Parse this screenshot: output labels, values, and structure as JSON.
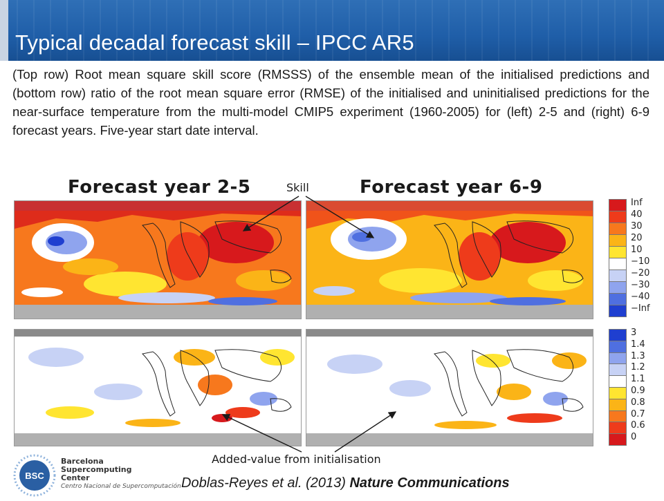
{
  "slide": {
    "title": "Typical decadal forecast skill – IPCC AR5",
    "description": "(Top row) Root mean square skill score (RMSSS) of the ensemble mean of the initialised predictions and (bottom row) ratio of the root mean square error (RMSE) of the initialised and uninitialised predictions for the near-surface temperature from the multi-model CMIP5 experiment (1960-2005) for (left) 2-5 and (right) 6-9 forecast years. Five-year start date interval."
  },
  "maps": {
    "left_title": "Forecast year 2-5",
    "right_title": "Forecast year 6-9"
  },
  "colorbar_top": {
    "labels": [
      "Inf",
      "40",
      "30",
      "20",
      "10",
      "−10",
      "−20",
      "−30",
      "−40",
      "−Inf"
    ],
    "colors": [
      "#d7191c",
      "#ee3b1b",
      "#f7781d",
      "#fbb417",
      "#ffe531",
      "#ffffff",
      "#c7d2f5",
      "#8fa4ee",
      "#4f6fe0",
      "#1f3fd0"
    ]
  },
  "colorbar_bottom": {
    "labels": [
      "3",
      "1.4",
      "1.3",
      "1.2",
      "1.1",
      "0.9",
      "0.8",
      "0.7",
      "0.6",
      "0"
    ],
    "colors": [
      "#1f3fd0",
      "#4f6fe0",
      "#8fa4ee",
      "#c7d2f5",
      "#ffffff",
      "#ffe531",
      "#fbb417",
      "#f7781d",
      "#ee3b1b",
      "#d7191c"
    ]
  },
  "annotations": {
    "skill": "Skill",
    "added_value": "Added-value from initialisation"
  },
  "footer": {
    "org_line1": "Barcelona",
    "org_line2": "Supercomputing",
    "org_line3": "Center",
    "org_line4": "Centro Nacional de Supercomputación",
    "logo_text": "BSC",
    "citation_authors": "Doblas-Reyes et al. (2013)",
    "citation_journal": "Nature Communications"
  }
}
